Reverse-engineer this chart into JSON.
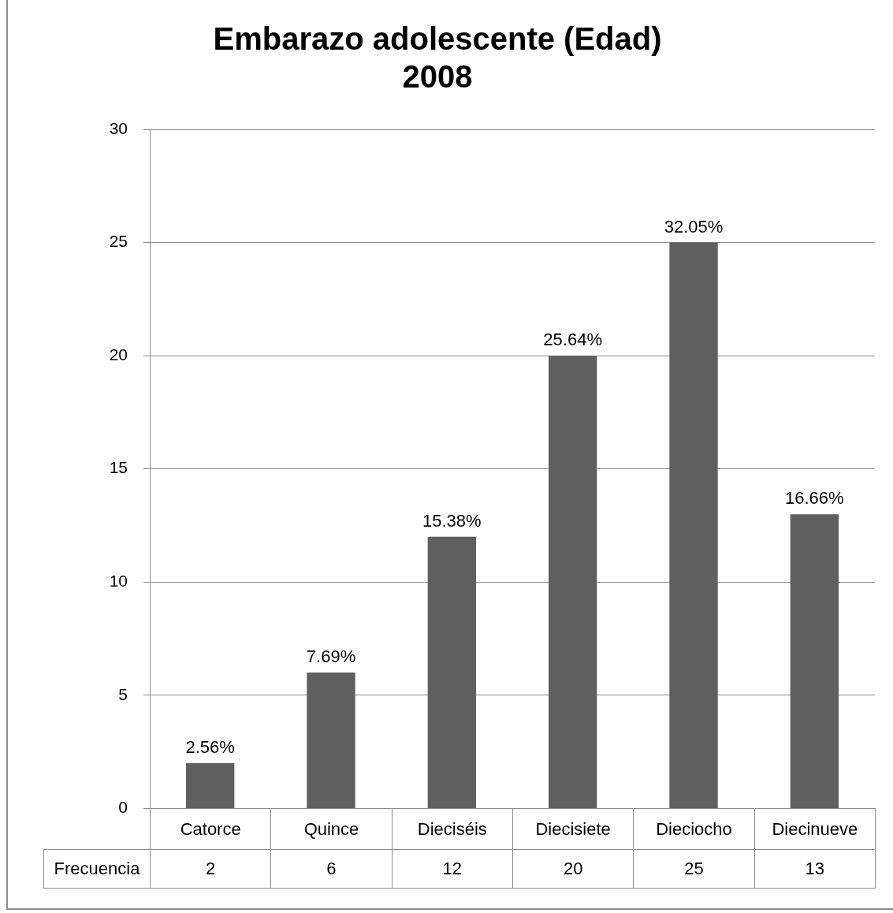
{
  "chart_data": {
    "type": "bar",
    "title": "Embarazo adolescente (Edad)\n2008",
    "categories": [
      "Catorce",
      "Quince",
      "Dieciséis",
      "Diecisiete",
      "Dieciocho",
      "Diecinueve"
    ],
    "series": [
      {
        "name": "Frecuencia",
        "color": "#5f5f5f",
        "values": [
          2,
          6,
          12,
          20,
          25,
          13
        ]
      }
    ],
    "annotations": [
      {
        "text": "2.56%",
        "x": "Catorce",
        "y": 2
      },
      {
        "text": "7.69%",
        "x": "Quince",
        "y": 6
      },
      {
        "text": "15.38%",
        "x": "Dieciséis",
        "y": 12
      },
      {
        "text": "25.64%",
        "x": "Diecisiete",
        "y": 20
      },
      {
        "text": "32.05%",
        "x": "Dieciocho",
        "y": 25
      },
      {
        "text": "16.66%",
        "x": "Diecinueve",
        "y": 13
      }
    ],
    "ylim": [
      0,
      30
    ],
    "yticks": [
      0,
      5,
      10,
      15,
      20,
      25,
      30
    ],
    "grid": "y",
    "legend": false,
    "data_labels": true
  }
}
